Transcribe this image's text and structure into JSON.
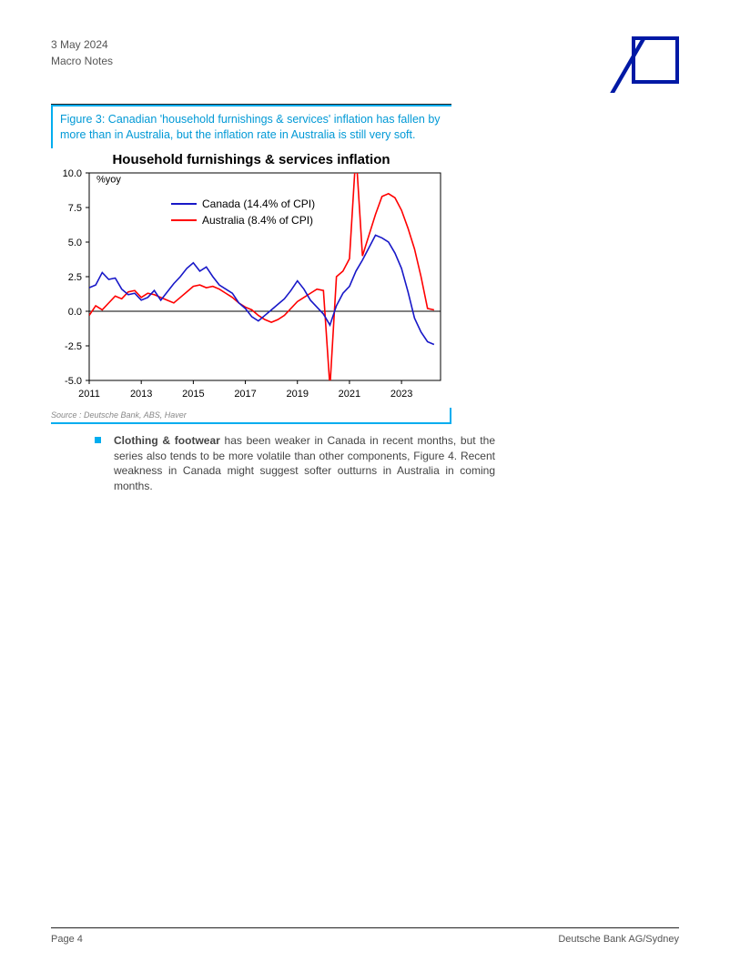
{
  "header": {
    "date": "3 May 2024",
    "doc_type": "Macro Notes"
  },
  "figure": {
    "caption": "Figure 3: Canadian 'household furnishings & services' inflation has fallen by more than in Australia, but the inflation rate in Australia is still very soft.",
    "title": "Household furnishings & services inflation",
    "y_unit": "%yoy",
    "source": "Source : Deutsche Bank, ABS, Haver",
    "caption_color": "#0099d6",
    "accent_color": "#00adef"
  },
  "chart": {
    "type": "line",
    "background_color": "#ffffff",
    "axis_color": "#000000",
    "xlim": [
      2011,
      2024.5
    ],
    "ylim": [
      -5.0,
      10.0
    ],
    "yticks": [
      -5.0,
      -2.5,
      0.0,
      2.5,
      5.0,
      7.5,
      10.0
    ],
    "ytick_labels": [
      "-5.0",
      "-2.5",
      "0.0",
      "2.5",
      "5.0",
      "7.5",
      "10.0"
    ],
    "xticks": [
      2011,
      2013,
      2015,
      2017,
      2019,
      2021,
      2023
    ],
    "xtick_labels": [
      "2011",
      "2013",
      "2015",
      "2017",
      "2019",
      "2021",
      "2023"
    ],
    "legend": {
      "items": [
        {
          "label": "Canada (14.4% of CPI)",
          "color": "#1818c8"
        },
        {
          "label": "Australia (8.4% of CPI)",
          "color": "#ff0000"
        }
      ]
    },
    "series": {
      "canada": {
        "color": "#1818c8",
        "line_width": 1.6,
        "x": [
          2011.0,
          2011.25,
          2011.5,
          2011.75,
          2012.0,
          2012.25,
          2012.5,
          2012.75,
          2013.0,
          2013.25,
          2013.5,
          2013.75,
          2014.0,
          2014.25,
          2014.5,
          2014.75,
          2015.0,
          2015.25,
          2015.5,
          2015.75,
          2016.0,
          2016.25,
          2016.5,
          2016.75,
          2017.0,
          2017.25,
          2017.5,
          2017.75,
          2018.0,
          2018.25,
          2018.5,
          2018.75,
          2019.0,
          2019.25,
          2019.5,
          2019.75,
          2020.0,
          2020.25,
          2020.5,
          2020.75,
          2021.0,
          2021.25,
          2021.5,
          2021.75,
          2022.0,
          2022.25,
          2022.5,
          2022.75,
          2023.0,
          2023.25,
          2023.5,
          2023.75,
          2024.0,
          2024.25
        ],
        "y": [
          1.7,
          1.9,
          2.8,
          2.3,
          2.4,
          1.6,
          1.2,
          1.3,
          0.8,
          1.0,
          1.5,
          0.8,
          1.4,
          2.0,
          2.5,
          3.1,
          3.5,
          2.9,
          3.2,
          2.5,
          1.9,
          1.6,
          1.3,
          0.6,
          0.2,
          -0.4,
          -0.7,
          -0.3,
          0.1,
          0.5,
          0.9,
          1.5,
          2.2,
          1.6,
          0.8,
          0.3,
          -0.2,
          -1.0,
          0.4,
          1.3,
          1.8,
          2.9,
          3.7,
          4.6,
          5.5,
          5.3,
          5.0,
          4.2,
          3.1,
          1.4,
          -0.5,
          -1.5,
          -2.2,
          -2.4
        ]
      },
      "australia": {
        "color": "#ff0000",
        "line_width": 1.6,
        "x": [
          2011.0,
          2011.25,
          2011.5,
          2011.75,
          2012.0,
          2012.25,
          2012.5,
          2012.75,
          2013.0,
          2013.25,
          2013.5,
          2013.75,
          2014.0,
          2014.25,
          2014.5,
          2014.75,
          2015.0,
          2015.25,
          2015.5,
          2015.75,
          2016.0,
          2016.25,
          2016.5,
          2016.75,
          2017.0,
          2017.25,
          2017.5,
          2017.75,
          2018.0,
          2018.25,
          2018.5,
          2018.75,
          2019.0,
          2019.25,
          2019.5,
          2019.75,
          2020.0,
          2020.25,
          2020.5,
          2020.75,
          2021.0,
          2021.25,
          2021.5,
          2021.75,
          2022.0,
          2022.25,
          2022.5,
          2022.75,
          2023.0,
          2023.25,
          2023.5,
          2023.75,
          2024.0,
          2024.25
        ],
        "y": [
          -0.3,
          0.4,
          0.1,
          0.6,
          1.1,
          0.9,
          1.4,
          1.5,
          1.0,
          1.3,
          1.2,
          1.0,
          0.8,
          0.6,
          1.0,
          1.4,
          1.8,
          1.9,
          1.7,
          1.8,
          1.6,
          1.3,
          1.0,
          0.6,
          0.3,
          0.1,
          -0.3,
          -0.6,
          -0.8,
          -0.6,
          -0.3,
          0.2,
          0.7,
          1.0,
          1.3,
          1.6,
          1.5,
          -5.5,
          2.5,
          2.9,
          3.8,
          11.5,
          4.0,
          5.5,
          7.0,
          8.3,
          8.5,
          8.2,
          7.3,
          6.0,
          4.5,
          2.5,
          0.2,
          0.1
        ]
      }
    }
  },
  "bullet": {
    "bold_lead": "Clothing & footwear",
    "rest": " has been weaker in Canada in recent months, but the series also tends to be more volatile than other components, Figure 4. Recent weakness in Canada might suggest softer outturns in Australia in coming months."
  },
  "footer": {
    "page": "Page 4",
    "brand": "Deutsche Bank AG/Sydney"
  }
}
